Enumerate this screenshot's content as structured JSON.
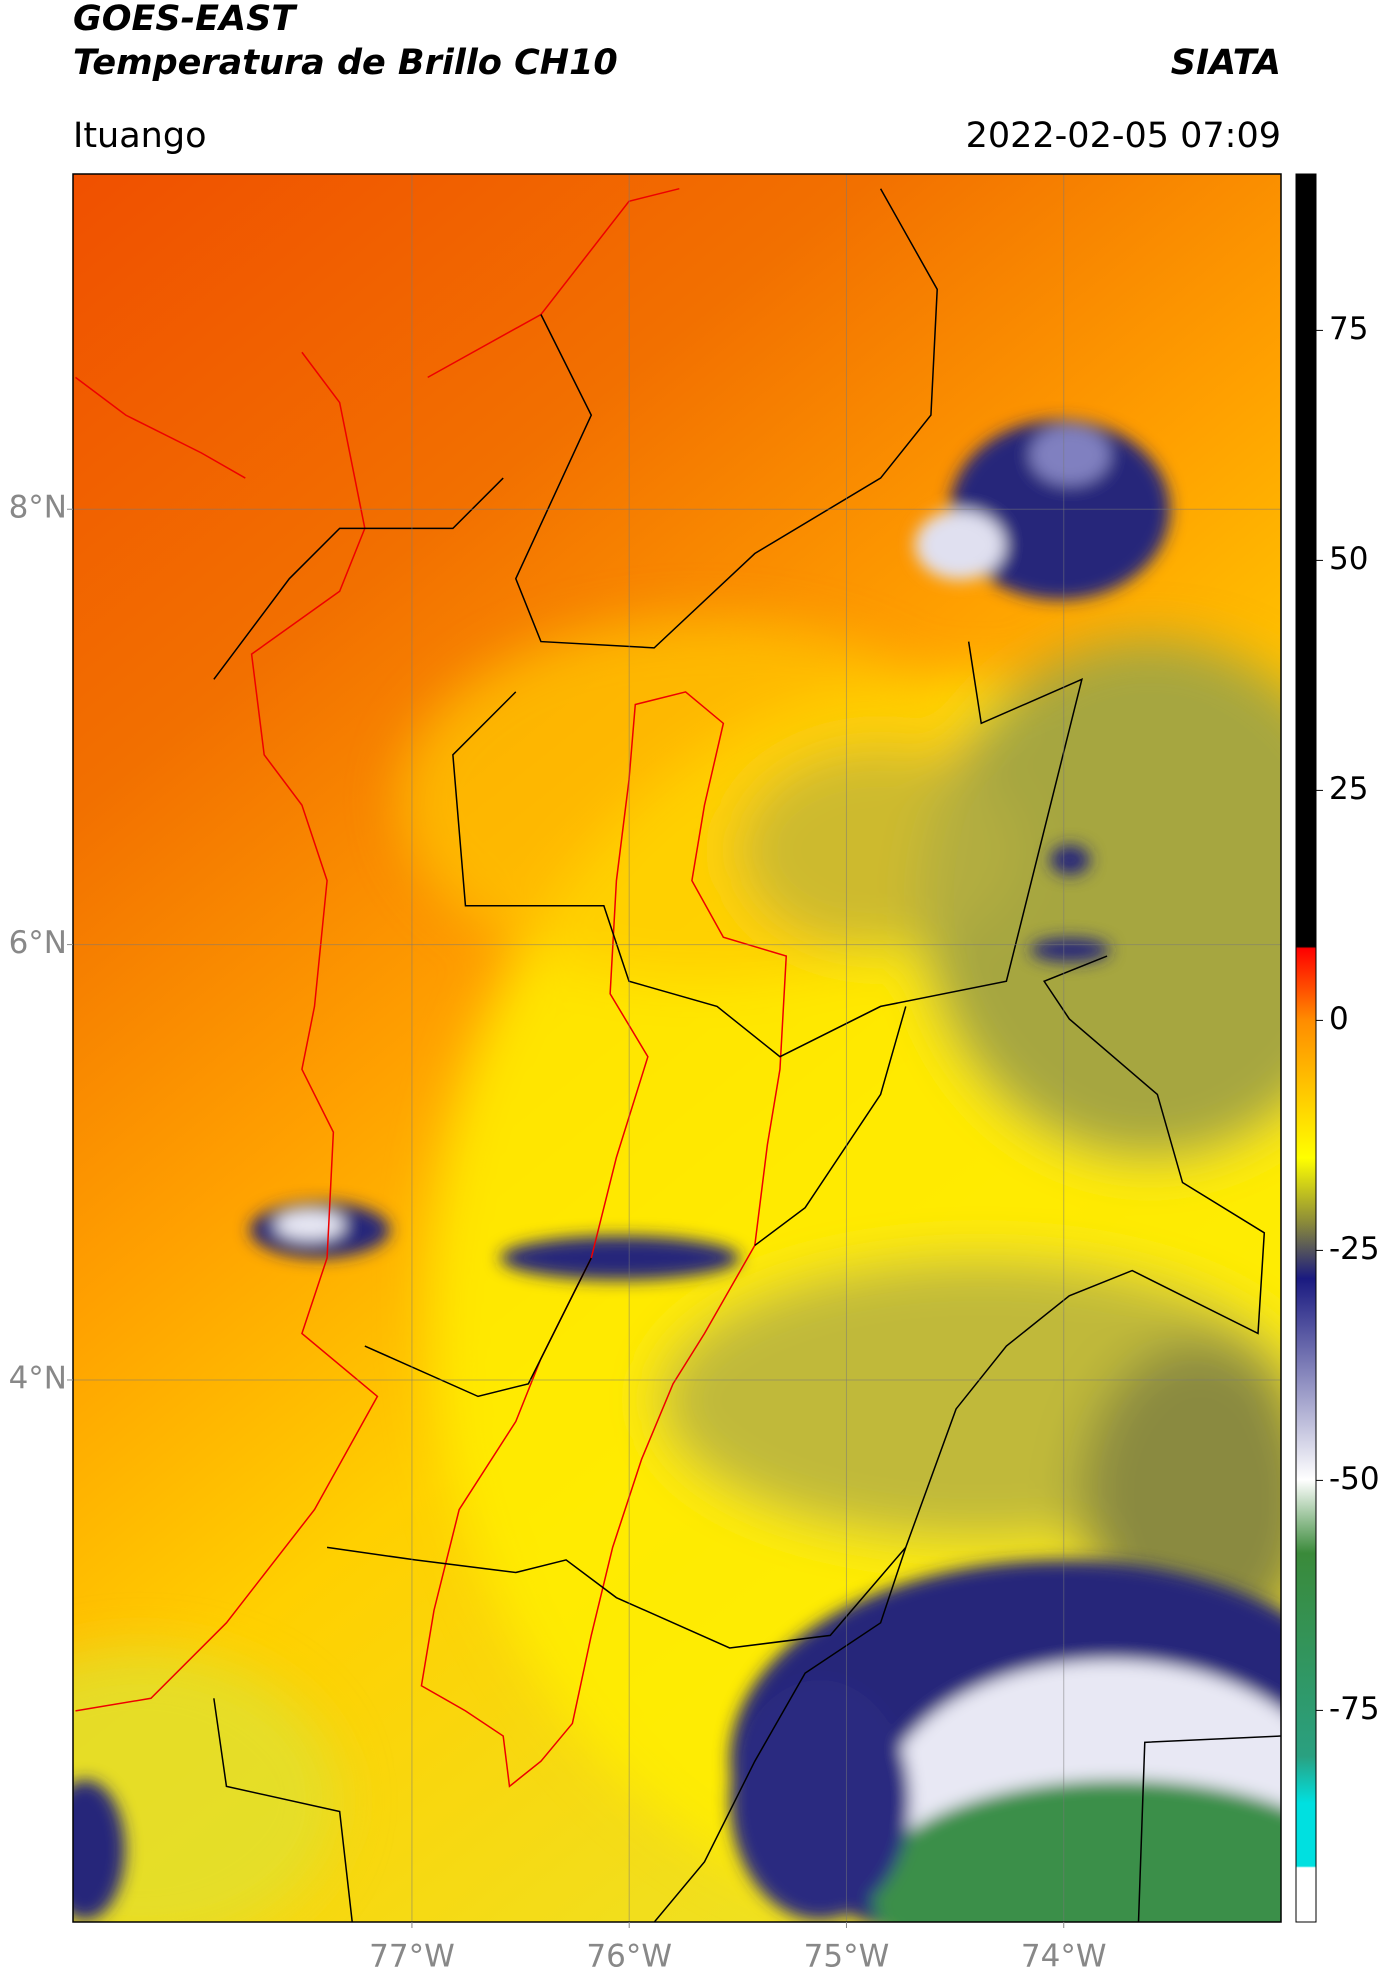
{
  "header": {
    "title": "GOES-EAST",
    "subtitle": "Temperatura de Brillo CH10",
    "source": "SIATA",
    "location": "Ituango",
    "datetime": "2022-02-05 07:09"
  },
  "map": {
    "xlim": [
      -78.56,
      -73.0
    ],
    "ylim": [
      1.51,
      9.54
    ],
    "xticks": [
      {
        "value": -77,
        "label": "77°W"
      },
      {
        "value": -76,
        "label": "76°W"
      },
      {
        "value": -75,
        "label": "75°W"
      },
      {
        "value": -74,
        "label": "74°W"
      }
    ],
    "yticks": [
      {
        "value": 8,
        "label": "8°N"
      },
      {
        "value": 6,
        "label": "6°N"
      },
      {
        "value": 4,
        "label": "4°N"
      }
    ],
    "grid": true
  },
  "colorbar": {
    "lim": [
      -98,
      92
    ],
    "ticks": [
      75,
      50,
      25,
      0,
      -25,
      -50,
      -75
    ]
  }
}
